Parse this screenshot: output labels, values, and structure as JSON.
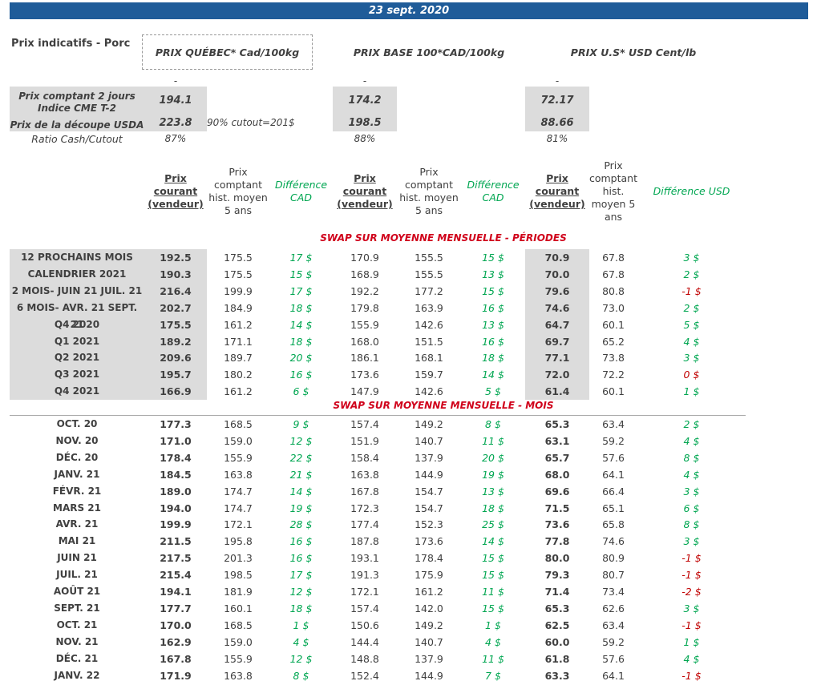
{
  "header": {
    "date": "23 sept. 2020"
  },
  "title": "Prix indicatifs - Porc",
  "price_headers": [
    "PRIX QUÉBEC* Cad/100kg",
    "PRIX BASE 100*CAD/100kg",
    "PRIX U.S* USD Cent/lb"
  ],
  "markers": [
    "-",
    "-",
    "-"
  ],
  "indicators": [
    {
      "label": "Prix comptant 2 jours\nIndice CME T-2",
      "values": [
        "194.1",
        "174.2",
        "72.17"
      ]
    },
    {
      "label": "Prix de la découpe USDA",
      "values": [
        "223.8",
        "198.5",
        "88.66"
      ]
    }
  ],
  "cutout_note": "90% cutout=201$",
  "ratio": {
    "label": "Ratio Cash/Cutout",
    "values": [
      "87%",
      "88%",
      "81%"
    ]
  },
  "column_headers": [
    "Prix\ncourant\n(vendeur)",
    "Prix\ncomptant\nhist. moyen\n5 ans",
    "Différence\nCAD",
    "Prix\ncourant\n(vendeur)",
    "Prix\ncomptant\nhist. moyen\n5 ans",
    "Différence\nCAD",
    "Prix\ncourant\n(vendeur)",
    "Prix\ncomptant\nhist.\nmoyen 5\nans",
    "Différence USD"
  ],
  "colors": {
    "positive": "#00a651",
    "negative": "#c00000",
    "section_title": "#d0021b"
  },
  "sections": [
    {
      "title": "SWAP SUR MOYENNE MENSUELLE - PÉRIODES",
      "shaded": true,
      "rows": [
        [
          "12 PROCHAINS MOIS",
          "192.5",
          "175.5",
          "17 $",
          "170.9",
          "155.5",
          "15 $",
          "70.9",
          "67.8",
          "3 $"
        ],
        [
          "CALENDRIER 2021",
          "190.3",
          "175.5",
          "15 $",
          "168.9",
          "155.5",
          "13 $",
          "70.0",
          "67.8",
          "2 $"
        ],
        [
          "2 MOIS- JUIN 21 JUIL. 21",
          "216.4",
          "199.9",
          "17 $",
          "192.2",
          "177.2",
          "15 $",
          "79.6",
          "80.8",
          "-1 $"
        ],
        [
          "6 MOIS- AVR. 21 SEPT. 21",
          "202.7",
          "184.9",
          "18 $",
          "179.8",
          "163.9",
          "16 $",
          "74.6",
          "73.0",
          "2 $"
        ],
        [
          "Q4 2020",
          "175.5",
          "161.2",
          "14 $",
          "155.9",
          "142.6",
          "13 $",
          "64.7",
          "60.1",
          "5 $"
        ],
        [
          "Q1 2021",
          "189.2",
          "171.1",
          "18 $",
          "168.0",
          "151.5",
          "16 $",
          "69.7",
          "65.2",
          "4 $"
        ],
        [
          "Q2 2021",
          "209.6",
          "189.7",
          "20 $",
          "186.1",
          "168.1",
          "18 $",
          "77.1",
          "73.8",
          "3 $"
        ],
        [
          "Q3 2021",
          "195.7",
          "180.2",
          "16 $",
          "173.6",
          "159.7",
          "14 $",
          "72.0",
          "72.2",
          "0 $"
        ],
        [
          "Q4 2021",
          "166.9",
          "161.2",
          "6 $",
          "147.9",
          "142.6",
          "5 $",
          "61.4",
          "60.1",
          "1 $"
        ]
      ]
    },
    {
      "title": "SWAP SUR MOYENNE MENSUELLE - MOIS",
      "shaded": false,
      "rows": [
        [
          "OCT. 20",
          "177.3",
          "168.5",
          "9 $",
          "157.4",
          "149.2",
          "8 $",
          "65.3",
          "63.4",
          "2 $"
        ],
        [
          "NOV. 20",
          "171.0",
          "159.0",
          "12 $",
          "151.9",
          "140.7",
          "11 $",
          "63.1",
          "59.2",
          "4 $"
        ],
        [
          "DÉC. 20",
          "178.4",
          "155.9",
          "22 $",
          "158.4",
          "137.9",
          "20 $",
          "65.7",
          "57.6",
          "8 $"
        ],
        [
          "JANV. 21",
          "184.5",
          "163.8",
          "21 $",
          "163.8",
          "144.9",
          "19 $",
          "68.0",
          "64.1",
          "4 $"
        ],
        [
          "FÉVR. 21",
          "189.0",
          "174.7",
          "14 $",
          "167.8",
          "154.7",
          "13 $",
          "69.6",
          "66.4",
          "3 $"
        ],
        [
          "MARS 21",
          "194.0",
          "174.7",
          "19 $",
          "172.3",
          "154.7",
          "18 $",
          "71.5",
          "65.1",
          "6 $"
        ],
        [
          "AVR. 21",
          "199.9",
          "172.1",
          "28 $",
          "177.4",
          "152.3",
          "25 $",
          "73.6",
          "65.8",
          "8 $"
        ],
        [
          "MAI 21",
          "211.5",
          "195.8",
          "16 $",
          "187.8",
          "173.6",
          "14 $",
          "77.8",
          "74.6",
          "3 $"
        ],
        [
          "JUIN 21",
          "217.5",
          "201.3",
          "16 $",
          "193.1",
          "178.4",
          "15 $",
          "80.0",
          "80.9",
          "-1 $"
        ],
        [
          "JUIL. 21",
          "215.4",
          "198.5",
          "17 $",
          "191.3",
          "175.9",
          "15 $",
          "79.3",
          "80.7",
          "-1 $"
        ],
        [
          "AOÛT 21",
          "194.1",
          "181.9",
          "12 $",
          "172.1",
          "161.2",
          "11 $",
          "71.4",
          "73.4",
          "-2 $"
        ],
        [
          "SEPT. 21",
          "177.7",
          "160.1",
          "18 $",
          "157.4",
          "142.0",
          "15 $",
          "65.3",
          "62.6",
          "3 $"
        ],
        [
          "OCT. 21",
          "170.0",
          "168.5",
          "1 $",
          "150.6",
          "149.2",
          "1 $",
          "62.5",
          "63.4",
          "-1 $"
        ],
        [
          "NOV. 21",
          "162.9",
          "159.0",
          "4 $",
          "144.4",
          "140.7",
          "4 $",
          "60.0",
          "59.2",
          "1 $"
        ],
        [
          "DÉC. 21",
          "167.8",
          "155.9",
          "12 $",
          "148.8",
          "137.9",
          "11 $",
          "61.8",
          "57.6",
          "4 $"
        ],
        [
          "JANV. 22",
          "171.9",
          "163.8",
          "8 $",
          "152.4",
          "144.9",
          "7 $",
          "63.3",
          "64.1",
          "-1 $"
        ]
      ]
    }
  ]
}
